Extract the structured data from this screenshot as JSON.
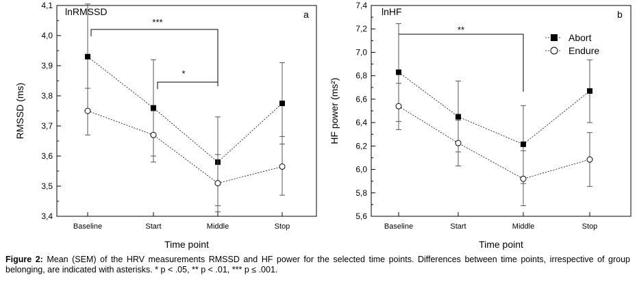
{
  "chart_data": [
    {
      "type": "line",
      "title": "lnRMSSD",
      "panel_label": "a",
      "xlabel": "Time point",
      "ylabel": "RMSSD (ms)",
      "categories": [
        "Baseline",
        "Start",
        "Middle",
        "Stop"
      ],
      "ylim": [
        3.4,
        4.1
      ],
      "yticks": [
        3.4,
        3.5,
        3.6,
        3.7,
        3.8,
        3.9,
        4.0,
        4.1
      ],
      "ytick_labels": [
        "3,4",
        "3,5",
        "3,6",
        "3,7",
        "3,8",
        "3,9",
        "4,0",
        "4,1"
      ],
      "series": [
        {
          "name": "Abort",
          "marker": "filled-square",
          "values": [
            3.93,
            3.76,
            3.58,
            3.775
          ],
          "err_low": [
            3.75,
            3.6,
            3.435,
            3.64
          ],
          "err_high": [
            4.105,
            3.92,
            3.73,
            3.91
          ]
        },
        {
          "name": "Endure",
          "marker": "open-circle",
          "values": [
            3.75,
            3.67,
            3.51,
            3.565
          ],
          "err_low": [
            3.67,
            3.58,
            3.415,
            3.47
          ],
          "err_high": [
            3.825,
            3.75,
            3.605,
            3.665
          ]
        }
      ],
      "significance": [
        {
          "from": "Baseline",
          "to": "Middle",
          "label": "***"
        },
        {
          "from": "Start",
          "to": "Middle",
          "label": "*"
        }
      ]
    },
    {
      "type": "line",
      "title": "lnHF",
      "panel_label": "b",
      "xlabel": "Time point",
      "ylabel": "HF power (ms²)",
      "categories": [
        "Baseline",
        "Start",
        "Middle",
        "Stop"
      ],
      "ylim": [
        5.6,
        7.4
      ],
      "yticks": [
        5.6,
        5.8,
        6.0,
        6.2,
        6.4,
        6.6,
        6.8,
        7.0,
        7.2,
        7.4
      ],
      "ytick_labels": [
        "5,6",
        "5,8",
        "6,0",
        "6,2",
        "6,4",
        "6,6",
        "6,8",
        "7,0",
        "7,2",
        "7,4"
      ],
      "legend": {
        "position": "top-right",
        "entries": [
          "Abort",
          "Endure"
        ]
      },
      "series": [
        {
          "name": "Abort",
          "marker": "filled-square",
          "values": [
            6.83,
            6.45,
            6.215,
            6.67
          ],
          "err_low": [
            6.41,
            6.15,
            5.88,
            6.4
          ],
          "err_high": [
            7.245,
            6.755,
            6.545,
            6.935
          ]
        },
        {
          "name": "Endure",
          "marker": "open-circle",
          "values": [
            6.54,
            6.225,
            5.92,
            6.085
          ],
          "err_low": [
            6.34,
            6.03,
            5.69,
            5.855
          ],
          "err_high": [
            6.735,
            6.42,
            6.16,
            6.315
          ]
        }
      ],
      "significance": [
        {
          "from": "Baseline",
          "to": "Middle",
          "label": "**"
        }
      ]
    }
  ],
  "caption": {
    "prefix": "Figure 2:",
    "text": " Mean (SEM) of the HRV measurements RMSSD and HF power for the selected time points. Differences between time points, irrespective of group belonging, are indicated with asterisks. * p < .05, ** p < .01, *** p ≤ .001."
  }
}
